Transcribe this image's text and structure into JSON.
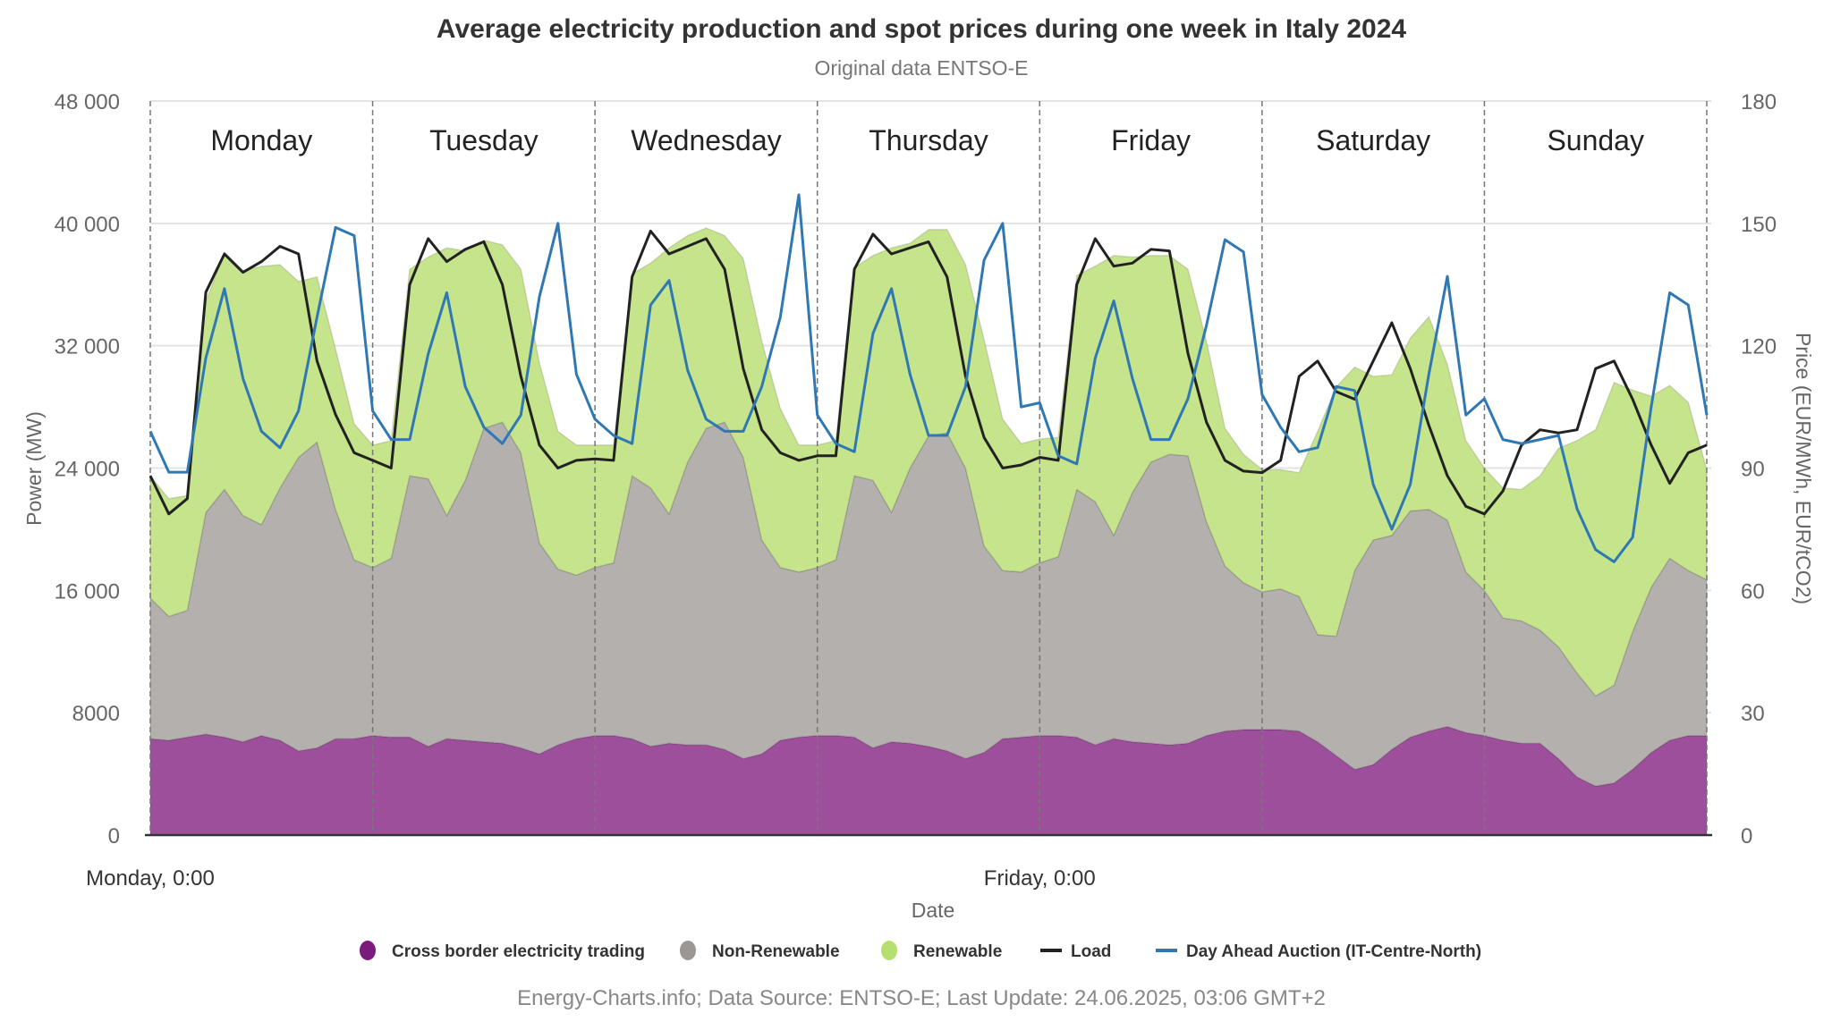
{
  "chart_data": {
    "type": "area",
    "title": "Average electricity production and spot prices during one week in Italy 2024",
    "subtitle": "Original data ENTSO-E",
    "xlabel": "Date",
    "ylabel": "Power (MW)",
    "y2label": "Price (EUR/MWh, EUR/tCO2)",
    "ylim": [
      0,
      48000
    ],
    "y2lim": [
      0,
      180
    ],
    "yticks": [
      0,
      8000,
      16000,
      24000,
      32000,
      40000,
      48000
    ],
    "ytick_labels": [
      "0",
      "8000",
      "16 000",
      "24 000",
      "32 000",
      "40 000",
      "48 000"
    ],
    "y2ticks": [
      0,
      30,
      60,
      90,
      120,
      150,
      180
    ],
    "y2tick_labels": [
      "0",
      "30",
      "60",
      "90",
      "120",
      "150",
      "180"
    ],
    "xtick_labels": [
      {
        "label": "Monday, 0:00",
        "hour": 0
      },
      {
        "label": "Friday, 0:00",
        "hour": 96
      }
    ],
    "days": [
      "Monday",
      "Tuesday",
      "Wednesday",
      "Thursday",
      "Friday",
      "Saturday",
      "Sunday"
    ],
    "hours_per_point": 2,
    "grid": true,
    "legend_position": "bottom",
    "stacked_series": [
      {
        "name": "Cross border electricity trading",
        "color": "#9e4f9c",
        "legend_color": "#7b1b7e",
        "values": [
          6300,
          6200,
          6400,
          6600,
          6400,
          6100,
          6500,
          6200,
          5500,
          5700,
          6300,
          6300,
          6500,
          6400,
          6400,
          5800,
          6300,
          6200,
          6100,
          6000,
          5700,
          5300,
          5900,
          6300,
          6500,
          6500,
          6300,
          5800,
          6000,
          5900,
          5900,
          5600,
          5000,
          5300,
          6200,
          6400,
          6500,
          6500,
          6400,
          5700,
          6100,
          6000,
          5800,
          5500,
          5000,
          5400,
          6300,
          6400,
          6500,
          6500,
          6400,
          5900,
          6300,
          6100,
          6000,
          5900,
          6000,
          6500,
          6800,
          6900,
          6900,
          6900,
          6800,
          6100,
          5200,
          4300,
          4600,
          5600,
          6400,
          6800,
          7100,
          6700,
          6500,
          6200,
          6000,
          6000,
          5000,
          3800,
          3200,
          3400,
          4300,
          5400,
          6200,
          6500,
          6500
        ]
      },
      {
        "name": "Non-Renewable",
        "color": "#b3b0ae",
        "legend_color": "#9a9794",
        "values": [
          9200,
          8100,
          8300,
          14500,
          16200,
          14800,
          13800,
          16500,
          19200,
          20000,
          15000,
          11700,
          11000,
          11700,
          17100,
          17500,
          14600,
          17000,
          20500,
          21000,
          19300,
          13800,
          11500,
          10700,
          11000,
          11300,
          17200,
          16900,
          15000,
          18500,
          20700,
          21400,
          19700,
          14000,
          11300,
          10800,
          11000,
          11500,
          17100,
          17500,
          15000,
          18000,
          20300,
          20800,
          19000,
          13500,
          11000,
          10800,
          11300,
          11700,
          16200,
          15900,
          13300,
          16300,
          18400,
          19000,
          18800,
          14000,
          10800,
          9600,
          9000,
          9200,
          8800,
          7000,
          7800,
          13000,
          14700,
          14000,
          14800,
          14500,
          13500,
          10500,
          9500,
          8000,
          8000,
          7400,
          7300,
          6800,
          5900,
          6400,
          9000,
          10800,
          11900,
          10800,
          10200
        ]
      },
      {
        "name": "Renewable",
        "color": "#c5e48b",
        "legend_color": "#b5df6e",
        "values": [
          8000,
          7700,
          7500,
          13800,
          15500,
          16000,
          16900,
          14600,
          11500,
          10800,
          10500,
          8900,
          8000,
          7700,
          13500,
          14500,
          17500,
          15000,
          12300,
          11600,
          12000,
          11800,
          9000,
          8500,
          8000,
          7700,
          13200,
          14700,
          17400,
          14800,
          13100,
          12200,
          13000,
          13000,
          10400,
          8300,
          8000,
          7800,
          13600,
          14700,
          17300,
          14700,
          13500,
          13300,
          13300,
          13500,
          9900,
          8400,
          8100,
          7800,
          14000,
          15400,
          18300,
          15400,
          13500,
          13000,
          12200,
          11800,
          9000,
          8400,
          8000,
          7800,
          8100,
          13300,
          16300,
          13300,
          10700,
          10500,
          11300,
          12600,
          10200,
          8600,
          8000,
          8500,
          8600,
          10100,
          13000,
          15200,
          17400,
          19800,
          15800,
          12500,
          11300,
          11000,
          7200
        ]
      }
    ],
    "line_series": [
      {
        "name": "Load",
        "axis": "left",
        "color": "#222222",
        "values": [
          23500,
          21000,
          22000,
          35500,
          38000,
          36800,
          37500,
          38500,
          38000,
          31000,
          27500,
          25000,
          24500,
          24000,
          36000,
          39000,
          37500,
          38300,
          38800,
          36000,
          30000,
          25500,
          24000,
          24500,
          24600,
          24500,
          36500,
          39500,
          38000,
          38500,
          39000,
          37000,
          30500,
          26500,
          25000,
          24500,
          24800,
          24800,
          37000,
          39300,
          38000,
          38400,
          38800,
          36500,
          30000,
          26000,
          24000,
          24200,
          24700,
          24500,
          36000,
          39000,
          37200,
          37400,
          38300,
          38200,
          31500,
          27000,
          24500,
          23800,
          23700,
          24500,
          30000,
          31000,
          29000,
          28500,
          31000,
          33500,
          30500,
          26800,
          23500,
          21500,
          21000,
          22500,
          25500,
          26500,
          26300,
          26500,
          30500,
          31000,
          28500,
          25500,
          23000,
          25000,
          25500
        ]
      },
      {
        "name": "Day Ahead Auction (IT-Centre-North)",
        "axis": "right",
        "color": "#2f78b4",
        "values": [
          99,
          89,
          89,
          117,
          134,
          112,
          99,
          95,
          104,
          127,
          149,
          147,
          104,
          97,
          97,
          118,
          133,
          110,
          100,
          96,
          103,
          132,
          150,
          113,
          102,
          98,
          96,
          130,
          136,
          114,
          102,
          99,
          99,
          110,
          127,
          157,
          103,
          96,
          94,
          123,
          134,
          113,
          98,
          98,
          110,
          141,
          150,
          105,
          106,
          93,
          91,
          117,
          131,
          112,
          97,
          97,
          107,
          125,
          146,
          143,
          108,
          100,
          94,
          95,
          110,
          109,
          86,
          75,
          86,
          113,
          137,
          103,
          107,
          97,
          96,
          97,
          98,
          80,
          70,
          67,
          73,
          105,
          133,
          130,
          103
        ]
      }
    ]
  },
  "legend": {
    "items": [
      {
        "label": "Cross border electricity trading",
        "type": "dot",
        "color": "#7b1b7e"
      },
      {
        "label": "Non-Renewable",
        "type": "dot",
        "color": "#9a9794"
      },
      {
        "label": "Renewable",
        "type": "dot",
        "color": "#b5df6e"
      },
      {
        "label": "Load",
        "type": "line",
        "color": "#222222"
      },
      {
        "label": "Day Ahead Auction (IT-Centre-North)",
        "type": "line",
        "color": "#2f78b4"
      }
    ]
  },
  "credits": "Energy-Charts.info; Data Source: ENTSO-E; Last Update: 24.06.2025, 03:06 GMT+2"
}
